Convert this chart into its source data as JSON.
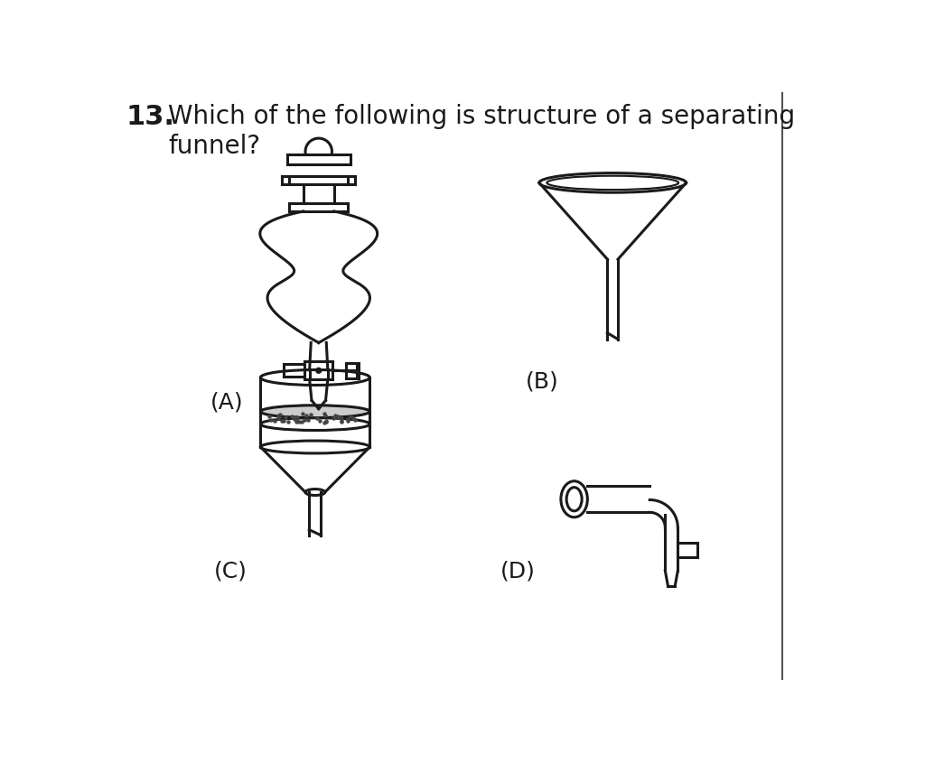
{
  "title_number": "13.",
  "question_line1": "Which of the following is structure of a separating",
  "question_line2": "funnel?",
  "labels": [
    "(A)",
    "(B)",
    "(C)",
    "(D)"
  ],
  "bg_color": "#ffffff",
  "line_color": "#1a1a1a",
  "line_width": 2.2,
  "font_size_number": 22,
  "font_size_question": 20,
  "font_size_label": 18,
  "fig_width": 10.24,
  "fig_height": 8.46
}
